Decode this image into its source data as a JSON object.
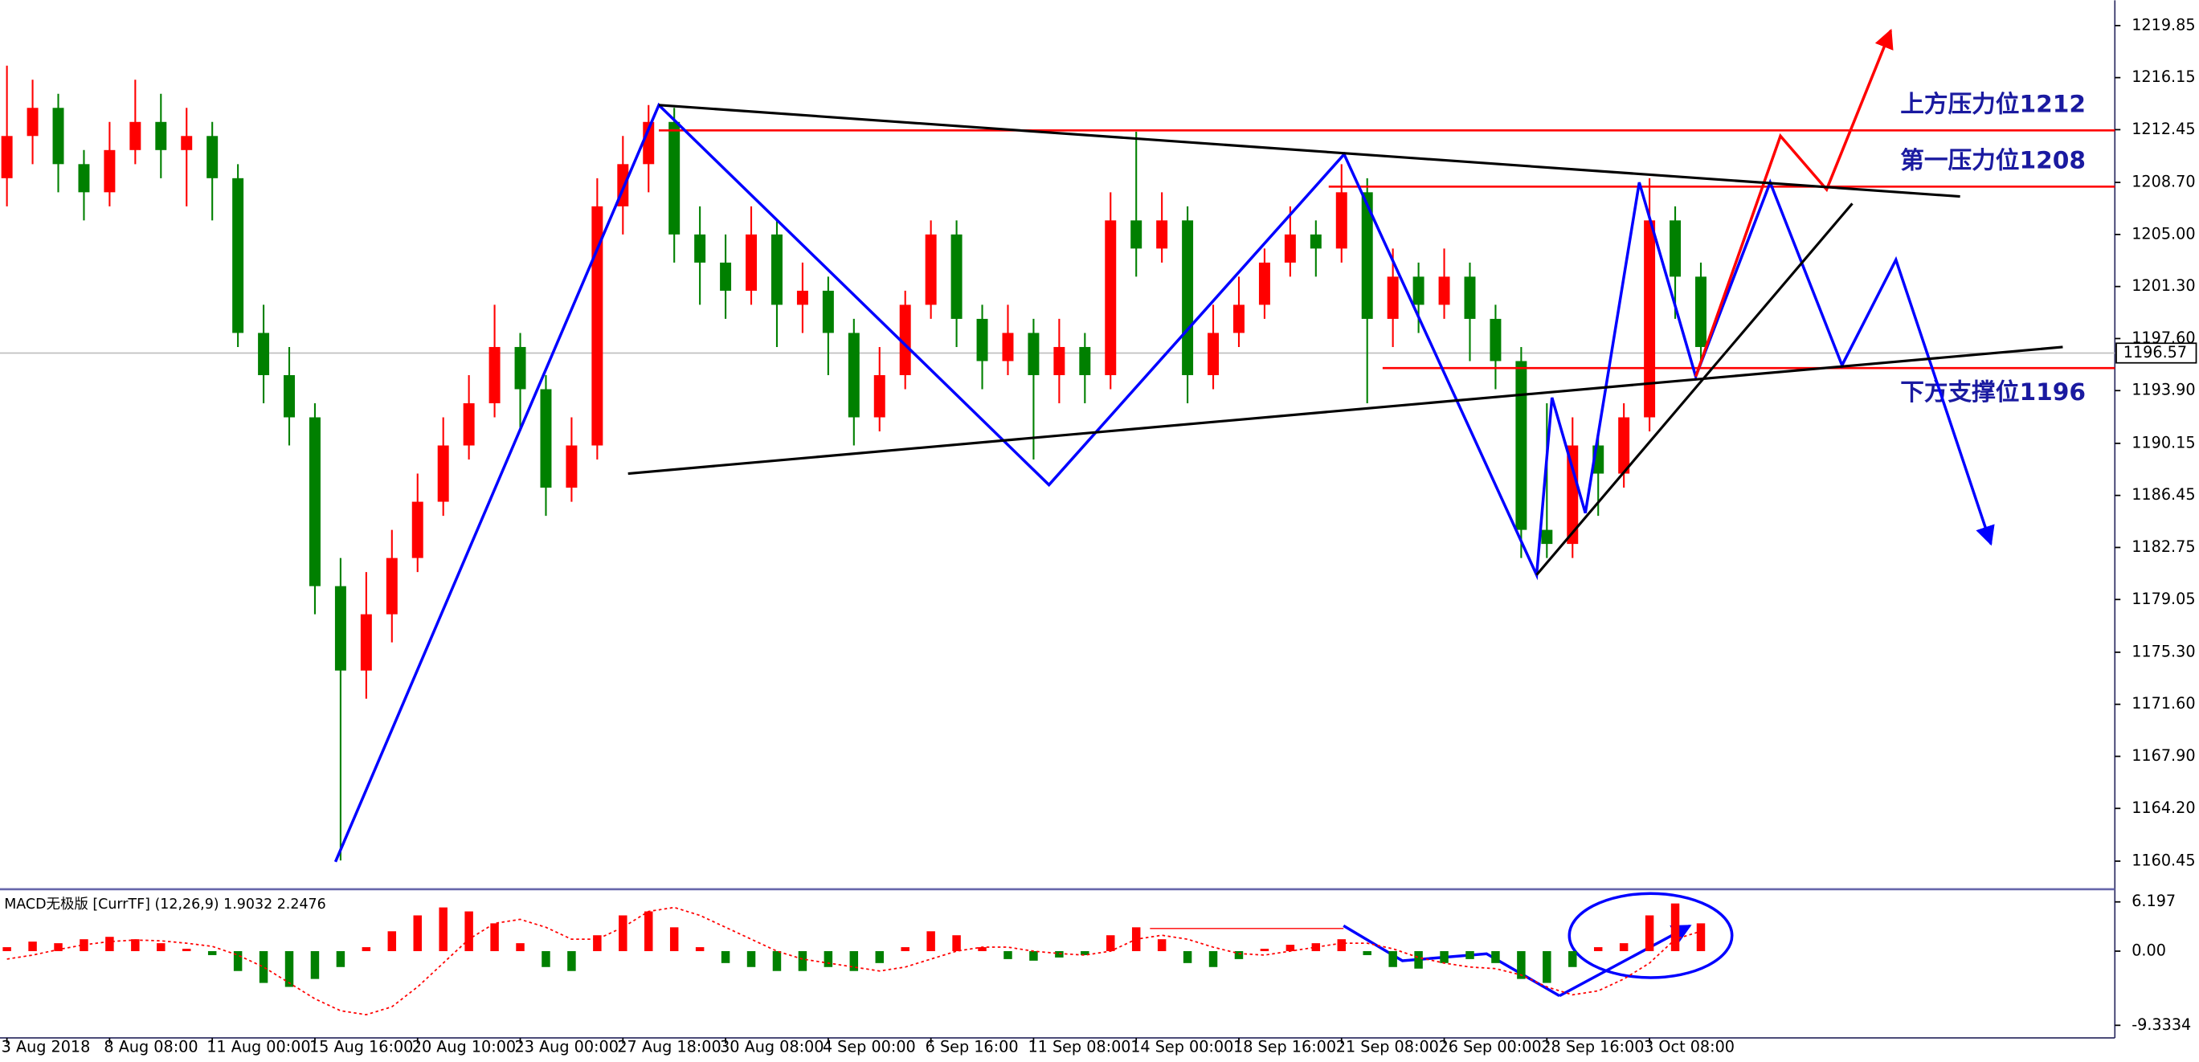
{
  "chart_data": [
    {
      "type": "candlestick",
      "categories": [
        "3 Aug 2018",
        null,
        null,
        null,
        "8 Aug 08:00",
        null,
        null,
        null,
        "11 Aug 00:00",
        null,
        null,
        null,
        "15 Aug 16:00",
        null,
        null,
        null,
        "20 Aug 10:00",
        null,
        null,
        null,
        "23 Aug 00:00",
        null,
        null,
        null,
        "27 Aug 18:00",
        null,
        null,
        null,
        "30 Aug 08:00",
        null,
        null,
        null,
        "4 Sep 00:00",
        null,
        null,
        null,
        "6 Sep 16:00",
        null,
        null,
        null,
        "11 Sep 08:00",
        null,
        null,
        null,
        "14 Sep 00:00",
        null,
        null,
        null,
        "18 Sep 16:00",
        null,
        null,
        null,
        "21 Sep 08:00",
        null,
        null,
        null,
        "26 Sep 00:00",
        null,
        null,
        null,
        "28 Sep 16:00",
        null,
        null,
        null,
        "3 Oct 08:00",
        null,
        null
      ],
      "open": [
        1209,
        1212,
        1214,
        1210,
        1208,
        1211,
        1213,
        1211,
        1212,
        1209,
        1198,
        1195,
        1192,
        1180,
        1174,
        1178,
        1182,
        1186,
        1190,
        1193,
        1197,
        1194,
        1187,
        1190,
        1207,
        1210,
        1213,
        1205,
        1203,
        1201,
        1205,
        1200,
        1201,
        1198,
        1192,
        1195,
        1200,
        1205,
        1199,
        1196,
        1198,
        1195,
        1197,
        1195,
        1206,
        1204,
        1206,
        1195,
        1198,
        1200,
        1203,
        1205,
        1204,
        1208,
        1199,
        1202,
        1200,
        1202,
        1199,
        1196,
        1184,
        1183,
        1190,
        1188,
        1192,
        1206,
        1202
      ],
      "high": [
        1217,
        1216,
        1215,
        1211,
        1213,
        1216,
        1215,
        1214,
        1213,
        1210,
        1200,
        1197,
        1193,
        1182,
        1181,
        1184,
        1188,
        1192,
        1195,
        1200,
        1198,
        1195,
        1192,
        1209,
        1212,
        1214.2,
        1214,
        1207,
        1205,
        1207,
        1206,
        1203,
        1202,
        1199,
        1197,
        1201,
        1206,
        1206,
        1200,
        1200,
        1199,
        1199,
        1198,
        1208,
        1212.3,
        1208,
        1207,
        1200,
        1202,
        1204,
        1207,
        1206,
        1210,
        1209,
        1204,
        1203,
        1204,
        1203,
        1200,
        1197,
        1193,
        1192,
        1191,
        1193,
        1209,
        1207,
        1203
      ],
      "low": [
        1207,
        1210,
        1208,
        1206,
        1207,
        1210,
        1209,
        1207,
        1206,
        1197,
        1193,
        1190,
        1178,
        1160.5,
        1172,
        1176,
        1181,
        1185,
        1189,
        1192,
        1191,
        1185,
        1186,
        1189,
        1205,
        1208,
        1203,
        1200,
        1199,
        1200,
        1197,
        1198,
        1195,
        1190,
        1191,
        1194,
        1199,
        1197,
        1194,
        1195,
        1189,
        1193,
        1193,
        1194,
        1202,
        1203,
        1193,
        1194,
        1197,
        1199,
        1202,
        1202,
        1203,
        1193,
        1197,
        1198,
        1199,
        1196,
        1194,
        1182,
        1182,
        1182,
        1185,
        1187,
        1191,
        1199,
        1196
      ],
      "close": [
        1212,
        1214,
        1210,
        1208,
        1211,
        1213,
        1211,
        1212,
        1209,
        1198,
        1195,
        1192,
        1180,
        1174,
        1178,
        1182,
        1186,
        1190,
        1193,
        1197,
        1194,
        1187,
        1190,
        1207,
        1210,
        1213,
        1205,
        1203,
        1201,
        1205,
        1200,
        1201,
        1198,
        1192,
        1195,
        1200,
        1205,
        1199,
        1196,
        1198,
        1195,
        1197,
        1195,
        1206,
        1204,
        1206,
        1195,
        1198,
        1200,
        1203,
        1205,
        1204,
        1208,
        1199,
        1202,
        1200,
        1202,
        1199,
        1196,
        1184,
        1183,
        1190,
        1188,
        1192,
        1206,
        1202,
        1197
      ],
      "up_color": "#ff0000",
      "down_color": "#008000",
      "xlim": [
        -0.27,
        82.13
      ],
      "ylim": [
        1158.55,
        1221.65
      ],
      "yticks": [
        1219.85,
        1216.15,
        1212.45,
        {
          "value": 1208.7,
          "label": "1208.70"
        },
        {
          "value": 1205,
          "label": "1205.00"
        },
        {
          "value": 1201.3,
          "label": "1201.30"
        },
        {
          "value": 1197.6,
          "label": "1197.60"
        },
        {
          "value": 1193.9,
          "label": "1193.90"
        },
        1190.15,
        1186.45,
        1182.75,
        1179.05,
        {
          "value": 1175.3,
          "label": "1175.30"
        },
        {
          "value": 1171.6,
          "label": "1171.60"
        },
        {
          "value": 1167.9,
          "label": "1167.90"
        },
        {
          "value": 1164.2,
          "label": "1164.20"
        },
        1160.45
      ],
      "grid": false,
      "current_price": 1196.57,
      "levels": [
        {
          "label": "上方压力位1212",
          "price": 1212.4,
          "start": 25.4,
          "color": "#ff0000",
          "side": "above"
        },
        {
          "label": "第一压力位1208",
          "price": 1208.4,
          "start": 51.5,
          "color": "#ff0000",
          "side": "above"
        },
        {
          "label": "下方支撑位1196",
          "price": 1195.5,
          "start": 53.6,
          "color": "#ff0000",
          "side": "below"
        }
      ],
      "drawings": [
        {
          "color": "#0000ff",
          "arrow": true,
          "x": [
            12.8,
            25.4,
            40.6,
            52.1,
            59.6,
            60.2,
            61.5,
            63.6,
            65.8,
            68.7,
            71.5,
            73.6,
            77.3
          ],
          "y": [
            1160.4,
            1214.2,
            1187.2,
            1210.7,
            1180.8,
            1193.4,
            1185.2,
            1208.7,
            1194.9,
            1208.7,
            1195.7,
            1203.2,
            1183
          ]
        },
        {
          "color": "#ff0000",
          "arrow": true,
          "x": [
            65.8,
            69.1,
            70.9,
            73.4
          ],
          "y": [
            1194.9,
            1212,
            1208.2,
            1219.5
          ]
        },
        {
          "color": "#000000",
          "arrow": false,
          "x": [
            25.4,
            76.1
          ],
          "y": [
            1214.2,
            1207.7
          ]
        },
        {
          "color": "#000000",
          "arrow": false,
          "x": [
            24.2,
            80.1
          ],
          "y": [
            1188,
            1197
          ]
        },
        {
          "color": "#000000",
          "arrow": false,
          "x": [
            59.6,
            71.9
          ],
          "y": [
            1180.8,
            1207.2
          ]
        }
      ]
    },
    {
      "type": "macd",
      "title": "MACD无极版 [CurrTF] (12,26,9) 1.9032 2.2476",
      "histogram": [
        0.5,
        1.2,
        1.0,
        1.5,
        1.8,
        1.5,
        1.0,
        0.3,
        -0.5,
        -2.5,
        -4.0,
        -4.5,
        -3.5,
        -2.0,
        0.5,
        2.5,
        4.5,
        5.5,
        5.0,
        3.5,
        1.0,
        -2.0,
        -2.5,
        2.0,
        4.5,
        5.0,
        3.0,
        0.5,
        -1.5,
        -2.0,
        -2.5,
        -2.5,
        -2.0,
        -2.5,
        -1.5,
        0.5,
        2.5,
        2.0,
        0.5,
        -1.0,
        -1.2,
        -0.8,
        -0.5,
        2.0,
        3.0,
        1.5,
        -1.5,
        -2.0,
        -1.0,
        0.3,
        0.8,
        1.0,
        1.5,
        -0.5,
        -2.0,
        -2.2,
        -1.5,
        -1.0,
        -1.5,
        -3.5,
        -4.0,
        -2.0,
        0.5,
        1.0,
        4.5,
        6.0,
        3.5
      ],
      "signal": {
        "color": "#ff0000",
        "values": [
          -1.0,
          -0.5,
          0.2,
          0.8,
          1.2,
          1.4,
          1.3,
          1.0,
          0.6,
          -0.5,
          -2.0,
          -4.0,
          -6.0,
          -7.5,
          -8.0,
          -7.0,
          -4.5,
          -1.5,
          1.5,
          3.5,
          4.0,
          3.0,
          1.5,
          1.5,
          3.0,
          5.0,
          5.5,
          4.5,
          3.0,
          1.5,
          0.0,
          -1.0,
          -1.5,
          -2.0,
          -2.5,
          -2.0,
          -1.0,
          0.0,
          0.5,
          0.5,
          0.0,
          -0.3,
          -0.5,
          0.0,
          1.5,
          2.0,
          1.5,
          0.5,
          -0.3,
          -0.5,
          0.0,
          0.5,
          1.0,
          1.0,
          0.3,
          -0.8,
          -1.5,
          -2.0,
          -2.2,
          -3.0,
          -4.5,
          -5.5,
          -5.0,
          -3.5,
          -1.5,
          1.5,
          2.5
        ]
      },
      "up_color": "#ff0000",
      "down_color": "#008000",
      "ylim": [
        -10.92,
        7.61
      ],
      "yticks": [
        6.197,
        {
          "value": 0,
          "label": "0.00"
        },
        -9.3334
      ]
    }
  ]
}
